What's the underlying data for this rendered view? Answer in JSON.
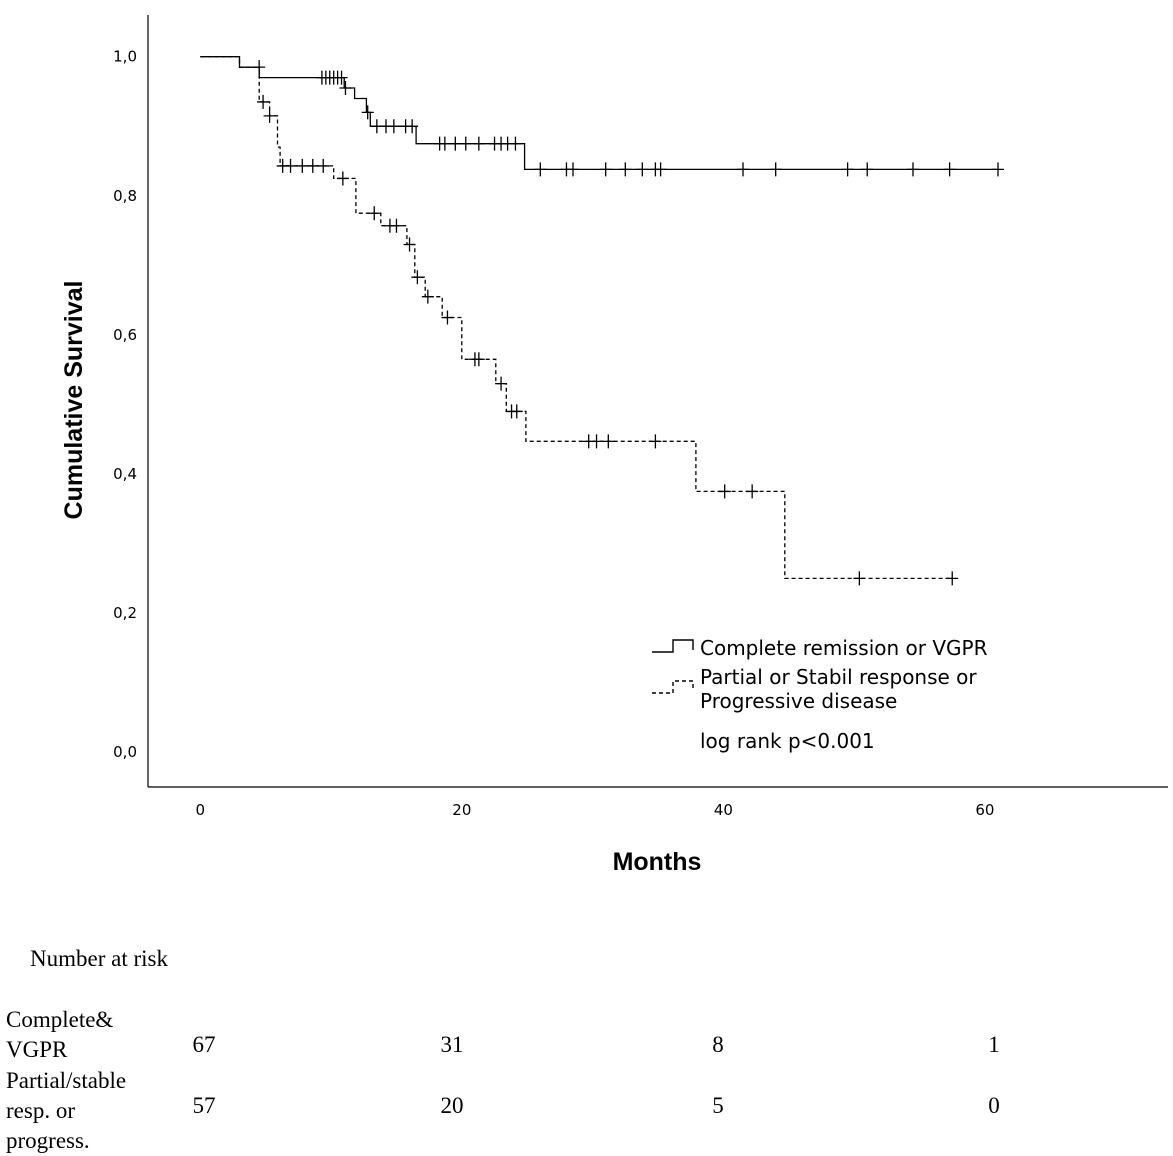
{
  "chart_data": {
    "type": "line",
    "subtype": "kaplan-meier",
    "ylabel": "Cumulative Survival",
    "xlabel": "Months",
    "xlim": [
      -4,
      74
    ],
    "ylim": [
      -0.05,
      1.06
    ],
    "x_ticks": [
      0,
      20,
      40,
      60
    ],
    "x_tick_labels": [
      "0",
      "20",
      "40",
      "60"
    ],
    "y_ticks": [
      0,
      0.2,
      0.4,
      0.6,
      0.8,
      1.0
    ],
    "y_tick_labels": [
      "0,0",
      "0,2",
      "0,4",
      "0,6",
      "0,8",
      "1,0"
    ],
    "legend_position": "lower-right",
    "annotation": "log rank p<0.001",
    "series": [
      {
        "name": "Complete remission or VGPR",
        "style": "solid",
        "steps": [
          [
            0,
            1.0
          ],
          [
            3,
            0.985
          ],
          [
            4.5,
            0.97
          ],
          [
            11,
            0.955
          ],
          [
            11.8,
            0.94
          ],
          [
            12.7,
            0.92
          ],
          [
            13,
            0.9
          ],
          [
            16.5,
            0.875
          ],
          [
            24.8,
            0.838
          ],
          [
            61,
            0.838
          ]
        ],
        "censored": [
          [
            9.3,
            0.97
          ],
          [
            9.6,
            0.97
          ],
          [
            9.9,
            0.97
          ],
          [
            10.2,
            0.97
          ],
          [
            10.5,
            0.97
          ],
          [
            10.8,
            0.97
          ],
          [
            11.1,
            0.955
          ],
          [
            12.8,
            0.92
          ],
          [
            13.5,
            0.9
          ],
          [
            14.2,
            0.9
          ],
          [
            14.8,
            0.9
          ],
          [
            15.7,
            0.9
          ],
          [
            16.2,
            0.9
          ],
          [
            18.3,
            0.875
          ],
          [
            18.7,
            0.875
          ],
          [
            19.5,
            0.875
          ],
          [
            20.3,
            0.875
          ],
          [
            21.3,
            0.875
          ],
          [
            22.5,
            0.875
          ],
          [
            23.0,
            0.875
          ],
          [
            23.5,
            0.875
          ],
          [
            24.1,
            0.875
          ],
          [
            26.0,
            0.838
          ],
          [
            28.0,
            0.838
          ],
          [
            28.5,
            0.838
          ],
          [
            31.0,
            0.838
          ],
          [
            32.5,
            0.838
          ],
          [
            33.8,
            0.838
          ],
          [
            34.8,
            0.838
          ],
          [
            35.2,
            0.838
          ],
          [
            41.5,
            0.838
          ],
          [
            44.0,
            0.838
          ],
          [
            49.5,
            0.838
          ],
          [
            51.0,
            0.838
          ],
          [
            54.5,
            0.838
          ],
          [
            57.3,
            0.838
          ],
          [
            61.0,
            0.838
          ]
        ]
      },
      {
        "name": "Partial or Stabil response or Progressive disease",
        "style": "dashed",
        "steps": [
          [
            0,
            1.0
          ],
          [
            3,
            0.985
          ],
          [
            4.5,
            0.935
          ],
          [
            5.3,
            0.915
          ],
          [
            5.9,
            0.87
          ],
          [
            6.1,
            0.843
          ],
          [
            10.2,
            0.825
          ],
          [
            11.9,
            0.775
          ],
          [
            13.8,
            0.757
          ],
          [
            15.8,
            0.73
          ],
          [
            16.4,
            0.683
          ],
          [
            17.2,
            0.655
          ],
          [
            18.5,
            0.625
          ],
          [
            20.0,
            0.565
          ],
          [
            22.6,
            0.53
          ],
          [
            23.4,
            0.49
          ],
          [
            24.9,
            0.447
          ],
          [
            37.9,
            0.375
          ],
          [
            44.7,
            0.25
          ],
          [
            57.5,
            0.25
          ]
        ],
        "censored": [
          [
            4.5,
            0.985
          ],
          [
            4.8,
            0.935
          ],
          [
            5.3,
            0.915
          ],
          [
            6.3,
            0.843
          ],
          [
            6.9,
            0.843
          ],
          [
            7.8,
            0.843
          ],
          [
            8.6,
            0.843
          ],
          [
            9.4,
            0.843
          ],
          [
            10.9,
            0.825
          ],
          [
            13.3,
            0.775
          ],
          [
            14.5,
            0.757
          ],
          [
            15.0,
            0.757
          ],
          [
            16.0,
            0.73
          ],
          [
            16.6,
            0.683
          ],
          [
            17.4,
            0.655
          ],
          [
            18.9,
            0.625
          ],
          [
            21.0,
            0.565
          ],
          [
            21.3,
            0.565
          ],
          [
            23.0,
            0.53
          ],
          [
            23.8,
            0.49
          ],
          [
            24.2,
            0.49
          ],
          [
            29.7,
            0.447
          ],
          [
            30.3,
            0.447
          ],
          [
            31.2,
            0.447
          ],
          [
            34.8,
            0.447
          ],
          [
            40.1,
            0.375
          ],
          [
            42.2,
            0.375
          ],
          [
            50.4,
            0.25
          ],
          [
            57.5,
            0.25
          ]
        ]
      }
    ]
  },
  "risk_table": {
    "heading": "Number at risk",
    "rows": [
      {
        "label_lines": [
          "Complete&",
          "VGPR"
        ],
        "values": [
          "67",
          "31",
          "8",
          "1"
        ]
      },
      {
        "label_lines": [
          "Partial/stable",
          "resp. or",
          "progress."
        ],
        "values": [
          "57",
          "20",
          "5",
          "0"
        ]
      }
    ]
  }
}
